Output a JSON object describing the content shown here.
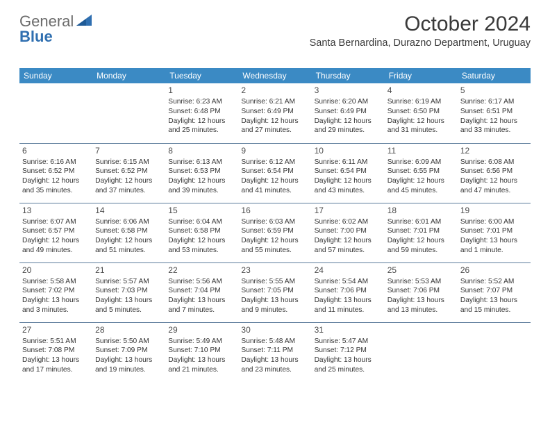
{
  "logo": {
    "word1": "General",
    "word2": "Blue"
  },
  "title": "October 2024",
  "location": "Santa Bernardina, Durazno Department, Uruguay",
  "colors": {
    "header_bg": "#3b8ac4",
    "header_text": "#ffffff",
    "rule": "#5a7a9a",
    "body_text": "#333333",
    "logo_gray": "#6b6b6b",
    "logo_blue": "#2f6fb0"
  },
  "weekdays": [
    "Sunday",
    "Monday",
    "Tuesday",
    "Wednesday",
    "Thursday",
    "Friday",
    "Saturday"
  ],
  "weeks": [
    [
      {
        "day": ""
      },
      {
        "day": ""
      },
      {
        "day": "1",
        "sunrise": "Sunrise: 6:23 AM",
        "sunset": "Sunset: 6:48 PM",
        "daylight": "Daylight: 12 hours and 25 minutes."
      },
      {
        "day": "2",
        "sunrise": "Sunrise: 6:21 AM",
        "sunset": "Sunset: 6:49 PM",
        "daylight": "Daylight: 12 hours and 27 minutes."
      },
      {
        "day": "3",
        "sunrise": "Sunrise: 6:20 AM",
        "sunset": "Sunset: 6:49 PM",
        "daylight": "Daylight: 12 hours and 29 minutes."
      },
      {
        "day": "4",
        "sunrise": "Sunrise: 6:19 AM",
        "sunset": "Sunset: 6:50 PM",
        "daylight": "Daylight: 12 hours and 31 minutes."
      },
      {
        "day": "5",
        "sunrise": "Sunrise: 6:17 AM",
        "sunset": "Sunset: 6:51 PM",
        "daylight": "Daylight: 12 hours and 33 minutes."
      }
    ],
    [
      {
        "day": "6",
        "sunrise": "Sunrise: 6:16 AM",
        "sunset": "Sunset: 6:52 PM",
        "daylight": "Daylight: 12 hours and 35 minutes."
      },
      {
        "day": "7",
        "sunrise": "Sunrise: 6:15 AM",
        "sunset": "Sunset: 6:52 PM",
        "daylight": "Daylight: 12 hours and 37 minutes."
      },
      {
        "day": "8",
        "sunrise": "Sunrise: 6:13 AM",
        "sunset": "Sunset: 6:53 PM",
        "daylight": "Daylight: 12 hours and 39 minutes."
      },
      {
        "day": "9",
        "sunrise": "Sunrise: 6:12 AM",
        "sunset": "Sunset: 6:54 PM",
        "daylight": "Daylight: 12 hours and 41 minutes."
      },
      {
        "day": "10",
        "sunrise": "Sunrise: 6:11 AM",
        "sunset": "Sunset: 6:54 PM",
        "daylight": "Daylight: 12 hours and 43 minutes."
      },
      {
        "day": "11",
        "sunrise": "Sunrise: 6:09 AM",
        "sunset": "Sunset: 6:55 PM",
        "daylight": "Daylight: 12 hours and 45 minutes."
      },
      {
        "day": "12",
        "sunrise": "Sunrise: 6:08 AM",
        "sunset": "Sunset: 6:56 PM",
        "daylight": "Daylight: 12 hours and 47 minutes."
      }
    ],
    [
      {
        "day": "13",
        "sunrise": "Sunrise: 6:07 AM",
        "sunset": "Sunset: 6:57 PM",
        "daylight": "Daylight: 12 hours and 49 minutes."
      },
      {
        "day": "14",
        "sunrise": "Sunrise: 6:06 AM",
        "sunset": "Sunset: 6:58 PM",
        "daylight": "Daylight: 12 hours and 51 minutes."
      },
      {
        "day": "15",
        "sunrise": "Sunrise: 6:04 AM",
        "sunset": "Sunset: 6:58 PM",
        "daylight": "Daylight: 12 hours and 53 minutes."
      },
      {
        "day": "16",
        "sunrise": "Sunrise: 6:03 AM",
        "sunset": "Sunset: 6:59 PM",
        "daylight": "Daylight: 12 hours and 55 minutes."
      },
      {
        "day": "17",
        "sunrise": "Sunrise: 6:02 AM",
        "sunset": "Sunset: 7:00 PM",
        "daylight": "Daylight: 12 hours and 57 minutes."
      },
      {
        "day": "18",
        "sunrise": "Sunrise: 6:01 AM",
        "sunset": "Sunset: 7:01 PM",
        "daylight": "Daylight: 12 hours and 59 minutes."
      },
      {
        "day": "19",
        "sunrise": "Sunrise: 6:00 AM",
        "sunset": "Sunset: 7:01 PM",
        "daylight": "Daylight: 13 hours and 1 minute."
      }
    ],
    [
      {
        "day": "20",
        "sunrise": "Sunrise: 5:58 AM",
        "sunset": "Sunset: 7:02 PM",
        "daylight": "Daylight: 13 hours and 3 minutes."
      },
      {
        "day": "21",
        "sunrise": "Sunrise: 5:57 AM",
        "sunset": "Sunset: 7:03 PM",
        "daylight": "Daylight: 13 hours and 5 minutes."
      },
      {
        "day": "22",
        "sunrise": "Sunrise: 5:56 AM",
        "sunset": "Sunset: 7:04 PM",
        "daylight": "Daylight: 13 hours and 7 minutes."
      },
      {
        "day": "23",
        "sunrise": "Sunrise: 5:55 AM",
        "sunset": "Sunset: 7:05 PM",
        "daylight": "Daylight: 13 hours and 9 minutes."
      },
      {
        "day": "24",
        "sunrise": "Sunrise: 5:54 AM",
        "sunset": "Sunset: 7:06 PM",
        "daylight": "Daylight: 13 hours and 11 minutes."
      },
      {
        "day": "25",
        "sunrise": "Sunrise: 5:53 AM",
        "sunset": "Sunset: 7:06 PM",
        "daylight": "Daylight: 13 hours and 13 minutes."
      },
      {
        "day": "26",
        "sunrise": "Sunrise: 5:52 AM",
        "sunset": "Sunset: 7:07 PM",
        "daylight": "Daylight: 13 hours and 15 minutes."
      }
    ],
    [
      {
        "day": "27",
        "sunrise": "Sunrise: 5:51 AM",
        "sunset": "Sunset: 7:08 PM",
        "daylight": "Daylight: 13 hours and 17 minutes."
      },
      {
        "day": "28",
        "sunrise": "Sunrise: 5:50 AM",
        "sunset": "Sunset: 7:09 PM",
        "daylight": "Daylight: 13 hours and 19 minutes."
      },
      {
        "day": "29",
        "sunrise": "Sunrise: 5:49 AM",
        "sunset": "Sunset: 7:10 PM",
        "daylight": "Daylight: 13 hours and 21 minutes."
      },
      {
        "day": "30",
        "sunrise": "Sunrise: 5:48 AM",
        "sunset": "Sunset: 7:11 PM",
        "daylight": "Daylight: 13 hours and 23 minutes."
      },
      {
        "day": "31",
        "sunrise": "Sunrise: 5:47 AM",
        "sunset": "Sunset: 7:12 PM",
        "daylight": "Daylight: 13 hours and 25 minutes."
      },
      {
        "day": ""
      },
      {
        "day": ""
      }
    ]
  ]
}
